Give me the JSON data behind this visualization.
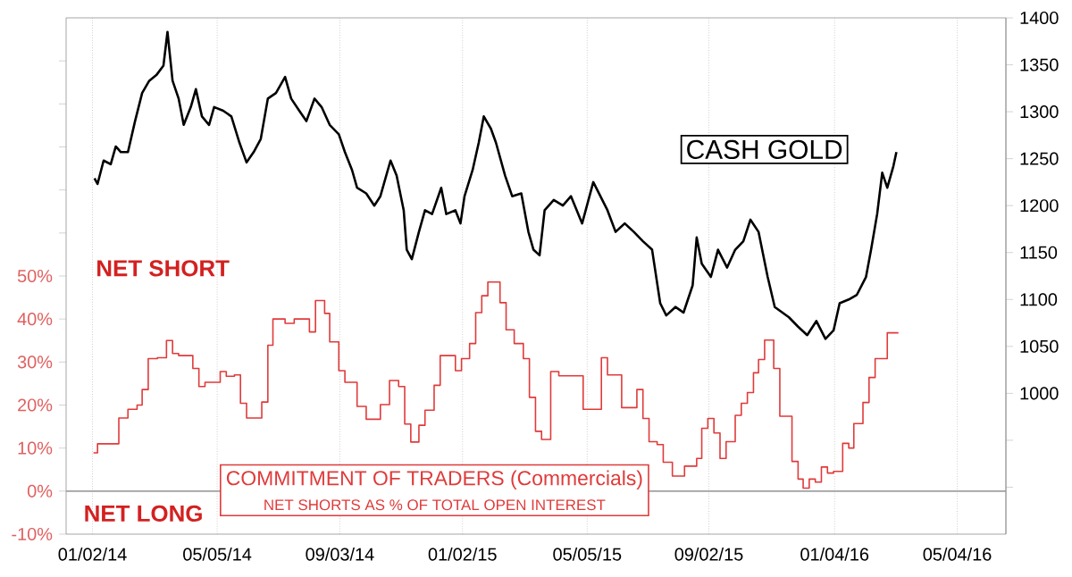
{
  "chart_data": {
    "type": "line",
    "xlim": [
      "2013-12-07",
      "2016-06-21"
    ],
    "xticks": [
      {
        "value": "2014-01-02",
        "label": "01/02/14"
      },
      {
        "value": "2014-05-05",
        "label": "05/05/14"
      },
      {
        "value": "2014-09-03",
        "label": "09/03/14"
      },
      {
        "value": "2015-01-02",
        "label": "01/02/15"
      },
      {
        "value": "2015-05-05",
        "label": "05/05/15"
      },
      {
        "value": "2015-09-02",
        "label": "09/02/15"
      },
      {
        "value": "2016-01-04",
        "label": "01/04/16"
      },
      {
        "value": "2016-05-04",
        "label": "05/04/16"
      }
    ],
    "ylim": [
      -10,
      110
    ],
    "yticks": [
      {
        "value": -10,
        "label": "-10%"
      },
      {
        "value": 0,
        "label": "0%"
      },
      {
        "value": 10,
        "label": "10%"
      },
      {
        "value": 20,
        "label": "20%"
      },
      {
        "value": 30,
        "label": "30%"
      },
      {
        "value": 40,
        "label": "40%"
      },
      {
        "value": 50,
        "label": "50%"
      },
      {
        "value": 60,
        "label": null
      },
      {
        "value": 70,
        "label": null
      },
      {
        "value": 80,
        "label": null
      },
      {
        "value": 90,
        "label": null
      },
      {
        "value": 100,
        "label": null
      }
    ],
    "y2lim": [
      850,
      1400
    ],
    "y2ticks": [
      {
        "value": 900,
        "label": null
      },
      {
        "value": 950,
        "label": null
      },
      1000,
      1050,
      1100,
      1150,
      1200,
      1250,
      1300,
      1350,
      1400
    ],
    "grid": "x",
    "ref_lines": [
      {
        "axis": "y",
        "value": 0,
        "color": "#a0a0a0"
      }
    ],
    "annotations": [
      "NET SHORT",
      "NET LONG",
      "NET SHORTS AS % OF TOTAL OPEN INTEREST"
    ],
    "series": [
      {
        "name": "CASH GOLD",
        "axis": "y2",
        "color": "#000000",
        "x": [
          "2014-01-04",
          "2014-01-07",
          "2014-01-13",
          "2014-01-20",
          "2014-01-25",
          "2014-01-30",
          "2014-02-06",
          "2014-02-13",
          "2014-02-20",
          "2014-02-27",
          "2014-03-06",
          "2014-03-13",
          "2014-03-17",
          "2014-03-22",
          "2014-03-28",
          "2014-04-02",
          "2014-04-09",
          "2014-04-14",
          "2014-04-20",
          "2014-04-27",
          "2014-05-02",
          "2014-05-11",
          "2014-05-19",
          "2014-05-27",
          "2014-06-03",
          "2014-06-10",
          "2014-06-17",
          "2014-06-24",
          "2014-07-02",
          "2014-07-11",
          "2014-07-17",
          "2014-07-25",
          "2014-08-01",
          "2014-08-09",
          "2014-08-16",
          "2014-08-24",
          "2014-09-02",
          "2014-09-08",
          "2014-09-15",
          "2014-09-20",
          "2014-09-29",
          "2014-10-07",
          "2014-10-13",
          "2014-10-18",
          "2014-10-23",
          "2014-10-29",
          "2014-11-05",
          "2014-11-08",
          "2014-11-13",
          "2014-11-20",
          "2014-11-26",
          "2014-12-03",
          "2014-12-12",
          "2014-12-17",
          "2014-12-26",
          "2014-12-31",
          "2015-01-04",
          "2015-01-12",
          "2015-01-18",
          "2015-01-23",
          "2015-01-30",
          "2015-02-04",
          "2015-02-13",
          "2015-02-20",
          "2015-03-01",
          "2015-03-08",
          "2015-03-13",
          "2015-03-19",
          "2015-03-24",
          "2015-04-02",
          "2015-04-11",
          "2015-04-19",
          "2015-04-30",
          "2015-05-11",
          "2015-05-25",
          "2015-06-02",
          "2015-06-11",
          "2015-06-20",
          "2015-06-29",
          "2015-07-08",
          "2015-07-16",
          "2015-07-22",
          "2015-07-31",
          "2015-08-08",
          "2015-08-17",
          "2015-08-21",
          "2015-08-26",
          "2015-09-04",
          "2015-09-11",
          "2015-09-20",
          "2015-09-28",
          "2015-10-06",
          "2015-10-13",
          "2015-10-21",
          "2015-10-30",
          "2015-11-06",
          "2015-11-20",
          "2015-11-29",
          "2015-12-08",
          "2015-12-17",
          "2015-12-26",
          "2016-01-03",
          "2016-01-09",
          "2016-01-18",
          "2016-01-26",
          "2016-02-04",
          "2016-02-09",
          "2016-02-15",
          "2016-02-20",
          "2016-02-25",
          "2016-03-02",
          "2016-03-05"
        ],
        "values": [
          1229,
          1223,
          1248,
          1244,
          1263,
          1257,
          1257,
          1290,
          1320,
          1333,
          1339,
          1349,
          1385,
          1333,
          1314,
          1286,
          1305,
          1324,
          1295,
          1286,
          1305,
          1301,
          1295,
          1267,
          1246,
          1257,
          1271,
          1314,
          1320,
          1337,
          1314,
          1301,
          1290,
          1314,
          1305,
          1286,
          1276,
          1257,
          1238,
          1219,
          1213,
          1200,
          1210,
          1229,
          1248,
          1232,
          1195,
          1153,
          1143,
          1172,
          1195,
          1191,
          1219,
          1191,
          1195,
          1181,
          1210,
          1238,
          1267,
          1295,
          1282,
          1267,
          1232,
          1210,
          1213,
          1172,
          1153,
          1147,
          1195,
          1206,
          1200,
          1210,
          1181,
          1225,
          1195,
          1172,
          1181,
          1172,
          1162,
          1153,
          1096,
          1083,
          1092,
          1086,
          1115,
          1166,
          1138,
          1124,
          1153,
          1134,
          1153,
          1162,
          1185,
          1172,
          1124,
          1092,
          1081,
          1071,
          1062,
          1077,
          1058,
          1067,
          1096,
          1100,
          1105,
          1124,
          1153,
          1191,
          1235,
          1219,
          1242,
          1257
        ]
      },
      {
        "name": "COMMITMENT OF TRADERS (Commercials)",
        "type": "step",
        "axis": "y",
        "color": "#e03a3a",
        "x": [
          "2014-01-03",
          "2014-01-07",
          "2014-01-28",
          "2014-02-06",
          "2014-02-15",
          "2014-02-20",
          "2014-02-26",
          "2014-03-07",
          "2014-03-16",
          "2014-03-22",
          "2014-03-28",
          "2014-04-11",
          "2014-04-17",
          "2014-04-23",
          "2014-05-08",
          "2014-05-14",
          "2014-05-22",
          "2014-05-28",
          "2014-06-03",
          "2014-06-18",
          "2014-06-24",
          "2014-06-29",
          "2014-07-11",
          "2014-07-20",
          "2014-08-04",
          "2014-08-10",
          "2014-08-19",
          "2014-08-24",
          "2014-09-02",
          "2014-09-08",
          "2014-09-20",
          "2014-09-29",
          "2014-10-13",
          "2014-10-22",
          "2014-10-31",
          "2014-11-06",
          "2014-11-12",
          "2014-11-20",
          "2014-11-26",
          "2014-12-05",
          "2014-12-11",
          "2014-12-26",
          "2015-01-01",
          "2015-01-09",
          "2015-01-15",
          "2015-01-21",
          "2015-01-27",
          "2015-02-08",
          "2015-02-14",
          "2015-02-22",
          "2015-03-03",
          "2015-03-09",
          "2015-03-15",
          "2015-03-21",
          "2015-03-30",
          "2015-04-07",
          "2015-05-01",
          "2015-05-19",
          "2015-05-25",
          "2015-06-08",
          "2015-06-23",
          "2015-06-29",
          "2015-07-05",
          "2015-07-13",
          "2015-07-19",
          "2015-07-28",
          "2015-08-09",
          "2015-08-21",
          "2015-08-26",
          "2015-09-01",
          "2015-09-07",
          "2015-09-13",
          "2015-09-19",
          "2015-09-28",
          "2015-10-04",
          "2015-10-10",
          "2015-10-16",
          "2015-10-21",
          "2015-10-27",
          "2015-11-05",
          "2015-11-11",
          "2015-11-23",
          "2015-11-29",
          "2015-12-04",
          "2015-12-10",
          "2015-12-16",
          "2015-12-22",
          "2015-12-28",
          "2016-01-03",
          "2016-01-12",
          "2016-01-18",
          "2016-01-23",
          "2016-02-01",
          "2016-02-07",
          "2016-02-13",
          "2016-02-25",
          "2016-03-07"
        ],
        "values": [
          8.9,
          11,
          17,
          19,
          20,
          23.6,
          30.8,
          31,
          35,
          32,
          31.5,
          28.5,
          24.3,
          25.3,
          27.8,
          26.7,
          27,
          20.4,
          17,
          20.7,
          33.9,
          40,
          39,
          40,
          37,
          44.3,
          41.3,
          34.7,
          28,
          25.3,
          19.7,
          16.7,
          20.1,
          25.7,
          24.3,
          15.6,
          11.4,
          15.3,
          18.8,
          24.6,
          31.5,
          28,
          30.8,
          34.3,
          41.5,
          45.4,
          48.6,
          43.8,
          37.5,
          34.3,
          30.8,
          21.8,
          13.9,
          12,
          27.8,
          26.8,
          19,
          31,
          27,
          19.4,
          23.6,
          16.9,
          11.5,
          10.8,
          6.7,
          3.5,
          5.8,
          7.6,
          14.6,
          16.9,
          13.5,
          7.6,
          11.5,
          17.6,
          20.4,
          22.9,
          27.5,
          30.6,
          35.1,
          28.5,
          17.4,
          6.9,
          2.8,
          0.7,
          2.8,
          2.1,
          5.6,
          4.2,
          4.6,
          11.1,
          10,
          15.7,
          20.6,
          26.4,
          30.8,
          36.8,
          36.8
        ]
      }
    ]
  }
}
